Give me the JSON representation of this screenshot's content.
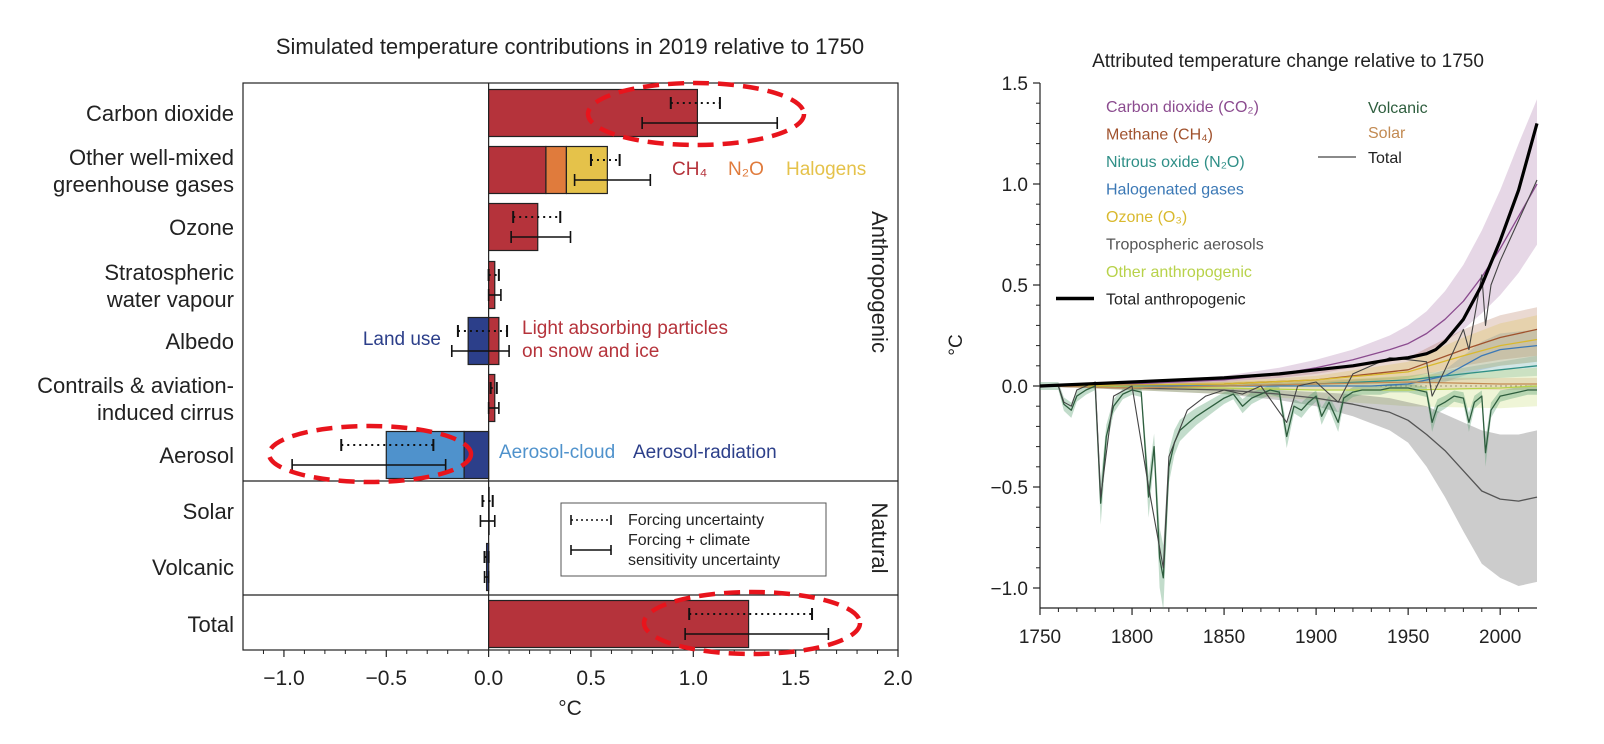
{
  "chart_data": [
    {
      "type": "bar",
      "orientation": "horizontal",
      "title": "Simulated temperature contributions in 2019 relative to 1750",
      "xlabel": "°C",
      "xlim": [
        -1.2,
        2.0
      ],
      "xticks": [
        "−1.0",
        "−0.5",
        "0.0",
        "0.5",
        "1.0",
        "1.5",
        "2.0"
      ],
      "xtick_values": [
        -1.0,
        -0.5,
        0.0,
        0.5,
        1.0,
        1.5,
        2.0
      ],
      "group_labels": [
        "Anthropogenic",
        "Natural"
      ],
      "categories": [
        {
          "label": [
            "Carbon dioxide"
          ],
          "segments": [
            {
              "from": 0,
              "to": 1.02,
              "color": "#b5333b"
            }
          ],
          "forcing_unc": [
            0.89,
            1.13
          ],
          "total_unc": [
            0.75,
            1.41
          ]
        },
        {
          "label": [
            "Other well-mixed",
            "greenhouse gases"
          ],
          "segments": [
            {
              "from": 0,
              "to": 0.28,
              "color": "#b5333b"
            },
            {
              "from": 0.28,
              "to": 0.38,
              "color": "#e07b3c"
            },
            {
              "from": 0.38,
              "to": 0.58,
              "color": "#e5c24a"
            }
          ],
          "forcing_unc": [
            0.5,
            0.64
          ],
          "total_unc": [
            0.42,
            0.79
          ]
        },
        {
          "label": [
            "Ozone"
          ],
          "segments": [
            {
              "from": 0,
              "to": 0.24,
              "color": "#b5333b"
            }
          ],
          "forcing_unc": [
            0.12,
            0.35
          ],
          "total_unc": [
            0.11,
            0.4
          ]
        },
        {
          "label": [
            "Stratospheric",
            "water vapour"
          ],
          "segments": [
            {
              "from": 0,
              "to": 0.03,
              "color": "#b5333b"
            }
          ],
          "forcing_unc": [
            0.0,
            0.05
          ],
          "total_unc": [
            0.0,
            0.06
          ]
        },
        {
          "label": [
            "Albedo"
          ],
          "segments": [
            {
              "from": 0,
              "to": 0.05,
              "color": "#b5333b"
            },
            {
              "from": 0,
              "to": -0.1,
              "color": "#2c3f8a"
            }
          ],
          "forcing_unc": [
            -0.15,
            0.09
          ],
          "total_unc": [
            -0.18,
            0.1
          ]
        },
        {
          "label": [
            "Contrails & aviation-",
            "induced cirrus"
          ],
          "segments": [
            {
              "from": 0,
              "to": 0.03,
              "color": "#b5333b"
            }
          ],
          "forcing_unc": [
            0.01,
            0.04
          ],
          "total_unc": [
            0.0,
            0.05
          ]
        },
        {
          "label": [
            "Aerosol"
          ],
          "segments": [
            {
              "from": 0,
              "to": -0.12,
              "color": "#2c3f8a"
            },
            {
              "from": -0.12,
              "to": -0.5,
              "color": "#4f92cc"
            }
          ],
          "forcing_unc": [
            -0.72,
            -0.27
          ],
          "total_unc": [
            -0.96,
            -0.21
          ]
        },
        {
          "label": [
            "Solar"
          ],
          "segments": [
            {
              "from": 0,
              "to": 0.0,
              "color": "#b5333b"
            }
          ],
          "forcing_unc": [
            -0.03,
            0.02
          ],
          "total_unc": [
            -0.04,
            0.03
          ]
        },
        {
          "label": [
            "Volcanic"
          ],
          "segments": [
            {
              "from": 0,
              "to": -0.01,
              "color": "#2c3f8a"
            }
          ],
          "forcing_unc": [
            -0.02,
            0.0
          ],
          "total_unc": [
            -0.02,
            0.0
          ]
        },
        {
          "label": [
            "Total"
          ],
          "segments": [
            {
              "from": 0,
              "to": 1.27,
              "color": "#b5333b"
            }
          ],
          "forcing_unc": [
            0.98,
            1.58
          ],
          "total_unc": [
            0.96,
            1.66
          ]
        }
      ],
      "annotations": {
        "ch4": "CH₄",
        "n2o": "N₂O",
        "halogens": "Halogens",
        "land_use": "Land use",
        "light_absorbing_1": "Light absorbing particles",
        "light_absorbing_2": "on snow and ice",
        "aerosol_cloud": "Aerosol-cloud",
        "aerosol_radiation": "Aerosol-radiation"
      },
      "legend": {
        "placement": "lower-right",
        "forcing": "Forcing uncertainty",
        "total_1": "Forcing + climate",
        "total_2": "sensitivity uncertainty"
      },
      "highlighted_rows": [
        "Carbon dioxide",
        "Aerosol",
        "Total"
      ],
      "highlight_color": "#e8141c",
      "colors": {
        "co2_red": "#b5333b",
        "ch4_orange": "#e07b3c",
        "halogens_yellow": "#e5c24a",
        "aerosol_cloud": "#4f92cc",
        "aerosol_radiation": "#2c3f8a"
      }
    },
    {
      "type": "line",
      "title": "Attributed temperature change relative to 1750",
      "ylabel": "°C",
      "xlim": [
        1750,
        2020
      ],
      "ylim": [
        -1.1,
        1.55
      ],
      "xticks": [
        "1750",
        "1800",
        "1850",
        "1900",
        "1950",
        "2000"
      ],
      "xtick_values": [
        1750,
        1800,
        1850,
        1900,
        1950,
        2000
      ],
      "yticks": [
        "−1.0",
        "−0.5",
        "0.0",
        "0.5",
        "1.0",
        "1.5"
      ],
      "ytick_values": [
        -1.0,
        -0.5,
        0.0,
        0.5,
        1.0,
        1.5
      ],
      "legend_placement": "top-left",
      "legend": [
        {
          "label": "Carbon dioxide (CO₂)",
          "color": "#8b4b8f"
        },
        {
          "label": "Methane (CH₄)",
          "color": "#a0522d"
        },
        {
          "label": "Nitrous oxide (N₂O)",
          "color": "#2f8f87"
        },
        {
          "label": "Halogenated gases",
          "color": "#3b78b5"
        },
        {
          "label": "Ozone (O₃)",
          "color": "#d9b92e"
        },
        {
          "label": "Tropospheric aerosols",
          "color": "#555555"
        },
        {
          "label": "Other anthropogenic",
          "color": "#b8d24a"
        },
        {
          "label": "Total anthropogenic",
          "color": "#000000"
        },
        {
          "label": "Volcanic",
          "color": "#2e5e3e"
        },
        {
          "label": "Solar",
          "color": "#c28a52"
        },
        {
          "label": "Total",
          "color": "#444444"
        }
      ],
      "series": [
        {
          "name": "Carbon dioxide (CO₂)",
          "color": "#8b4b8f",
          "x": [
            1750,
            1800,
            1850,
            1880,
            1900,
            1920,
            1940,
            1950,
            1960,
            1970,
            1980,
            1990,
            2000,
            2010,
            2020
          ],
          "y": [
            0,
            0.01,
            0.03,
            0.06,
            0.09,
            0.13,
            0.18,
            0.21,
            0.26,
            0.33,
            0.42,
            0.54,
            0.68,
            0.84,
            1.0
          ],
          "band_lo": [
            0,
            0.0,
            0.02,
            0.04,
            0.06,
            0.09,
            0.12,
            0.14,
            0.17,
            0.22,
            0.28,
            0.36,
            0.45,
            0.56,
            0.7
          ],
          "band_hi": [
            0,
            0.02,
            0.05,
            0.09,
            0.13,
            0.18,
            0.25,
            0.3,
            0.37,
            0.47,
            0.6,
            0.77,
            0.97,
            1.2,
            1.42
          ]
        },
        {
          "name": "Methane (CH₄)",
          "color": "#a0522d",
          "x": [
            1750,
            1850,
            1900,
            1950,
            1980,
            2000,
            2020
          ],
          "y": [
            0,
            0.01,
            0.03,
            0.08,
            0.18,
            0.24,
            0.28
          ],
          "band_lo": [
            0,
            0.0,
            0.01,
            0.04,
            0.1,
            0.13,
            0.15
          ],
          "band_hi": [
            0,
            0.03,
            0.07,
            0.14,
            0.28,
            0.35,
            0.39
          ]
        },
        {
          "name": "Nitrous oxide (N₂O)",
          "color": "#2f8f87",
          "x": [
            1750,
            1850,
            1900,
            1950,
            1980,
            2000,
            2020
          ],
          "y": [
            0,
            0.0,
            0.01,
            0.03,
            0.06,
            0.08,
            0.1
          ],
          "band_lo": [
            0,
            0.0,
            0.0,
            0.01,
            0.03,
            0.04,
            0.05
          ],
          "band_hi": [
            0,
            0.01,
            0.02,
            0.05,
            0.09,
            0.12,
            0.15
          ]
        },
        {
          "name": "Halogenated gases",
          "color": "#3b78b5",
          "x": [
            1750,
            1930,
            1950,
            1970,
            1990,
            2000,
            2020
          ],
          "y": [
            0,
            0.0,
            0.01,
            0.05,
            0.15,
            0.18,
            0.2
          ],
          "band_lo": [
            0,
            0.0,
            0.0,
            0.02,
            0.08,
            0.1,
            0.12
          ],
          "band_hi": [
            0,
            0.0,
            0.02,
            0.08,
            0.22,
            0.26,
            0.28
          ]
        },
        {
          "name": "Ozone (O₃)",
          "color": "#d9b92e",
          "x": [
            1750,
            1850,
            1900,
            1950,
            1980,
            2000,
            2020
          ],
          "y": [
            0,
            0.01,
            0.03,
            0.07,
            0.15,
            0.2,
            0.23
          ],
          "band_lo": [
            0,
            0.0,
            0.01,
            0.03,
            0.07,
            0.1,
            0.12
          ],
          "band_hi": [
            0,
            0.02,
            0.05,
            0.12,
            0.24,
            0.31,
            0.35
          ]
        },
        {
          "name": "Other anthropogenic",
          "color": "#b8d24a",
          "x": [
            1750,
            1850,
            1900,
            1950,
            2000,
            2020
          ],
          "y": [
            0,
            -0.01,
            -0.02,
            -0.02,
            -0.01,
            0.0
          ],
          "band_lo": [
            0,
            -0.04,
            -0.07,
            -0.1,
            -0.11,
            -0.1
          ],
          "band_hi": [
            0,
            0.02,
            0.03,
            0.05,
            0.08,
            0.09
          ]
        },
        {
          "name": "Tropospheric aerosols",
          "color": "#555555",
          "x": [
            1750,
            1850,
            1880,
            1900,
            1920,
            1940,
            1950,
            1960,
            1970,
            1980,
            1990,
            2000,
            2010,
            2020
          ],
          "y": [
            0,
            -0.02,
            -0.04,
            -0.06,
            -0.09,
            -0.13,
            -0.17,
            -0.24,
            -0.32,
            -0.42,
            -0.52,
            -0.56,
            -0.57,
            -0.55
          ],
          "band_lo": [
            0,
            -0.04,
            -0.07,
            -0.1,
            -0.15,
            -0.22,
            -0.28,
            -0.4,
            -0.55,
            -0.72,
            -0.88,
            -0.95,
            -0.99,
            -0.97
          ],
          "band_hi": [
            0,
            -0.01,
            -0.02,
            -0.03,
            -0.04,
            -0.06,
            -0.08,
            -0.1,
            -0.14,
            -0.18,
            -0.22,
            -0.24,
            -0.24,
            -0.22
          ]
        },
        {
          "name": "Solar",
          "color": "#c28a52",
          "x": [
            1750,
            1800,
            1850,
            1900,
            1950,
            2000,
            2020
          ],
          "y": [
            0,
            -0.01,
            0.0,
            0.01,
            0.02,
            0.01,
            0.01
          ],
          "band_lo": [
            0,
            -0.02,
            -0.02,
            -0.02,
            -0.01,
            -0.02,
            -0.02
          ],
          "band_hi": [
            0,
            0.0,
            0.02,
            0.03,
            0.04,
            0.04,
            0.04
          ]
        },
        {
          "name": "Volcanic",
          "color": "#2e5e3e",
          "x": [
            1750,
            1760,
            1763,
            1767,
            1770,
            1775,
            1780,
            1783,
            1786,
            1790,
            1795,
            1800,
            1805,
            1809,
            1812,
            1815,
            1817,
            1820,
            1823,
            1826,
            1831,
            1835,
            1840,
            1845,
            1850,
            1855,
            1860,
            1865,
            1870,
            1875,
            1880,
            1884,
            1888,
            1892,
            1896,
            1900,
            1903,
            1907,
            1912,
            1915,
            1920,
            1925,
            1930,
            1935,
            1940,
            1945,
            1950,
            1955,
            1960,
            1963,
            1966,
            1970,
            1975,
            1980,
            1983,
            1986,
            1990,
            1992,
            1995,
            2000,
            2005,
            2010,
            2015,
            2020
          ],
          "y": [
            0,
            0.0,
            -0.09,
            -0.12,
            -0.05,
            -0.02,
            0.0,
            -0.58,
            -0.25,
            -0.1,
            -0.04,
            -0.02,
            -0.03,
            -0.55,
            -0.3,
            -0.85,
            -0.95,
            -0.4,
            -0.28,
            -0.22,
            -0.18,
            -0.15,
            -0.12,
            -0.09,
            -0.06,
            -0.04,
            -0.1,
            -0.06,
            -0.04,
            -0.02,
            -0.03,
            -0.25,
            -0.1,
            -0.12,
            -0.08,
            -0.05,
            -0.15,
            -0.08,
            -0.18,
            -0.06,
            -0.03,
            -0.02,
            -0.02,
            -0.02,
            -0.01,
            -0.01,
            -0.01,
            -0.02,
            -0.03,
            -0.18,
            -0.1,
            -0.08,
            -0.05,
            -0.06,
            -0.18,
            -0.08,
            -0.05,
            -0.33,
            -0.12,
            -0.05,
            -0.04,
            -0.03,
            -0.02,
            -0.02
          ]
        },
        {
          "name": "Total",
          "color": "#444444",
          "x": [
            1750,
            1760,
            1763,
            1767,
            1770,
            1780,
            1783,
            1790,
            1800,
            1809,
            1815,
            1817,
            1820,
            1830,
            1840,
            1850,
            1860,
            1870,
            1884,
            1890,
            1900,
            1912,
            1920,
            1930,
            1940,
            1950,
            1960,
            1963,
            1970,
            1980,
            1983,
            1990,
            1992,
            1995,
            2000,
            2010,
            2020
          ],
          "y": [
            0,
            0.0,
            -0.08,
            -0.1,
            -0.02,
            0.02,
            -0.55,
            -0.05,
            0.0,
            -0.5,
            -0.8,
            -0.9,
            -0.35,
            -0.12,
            -0.05,
            -0.02,
            -0.04,
            0.0,
            -0.18,
            0.0,
            0.02,
            -0.08,
            0.06,
            0.1,
            0.14,
            0.13,
            0.12,
            -0.05,
            0.08,
            0.28,
            0.18,
            0.55,
            0.3,
            0.5,
            0.62,
            0.82,
            1.02
          ]
        },
        {
          "name": "Total anthropogenic",
          "color": "#000000",
          "x": [
            1750,
            1800,
            1850,
            1880,
            1900,
            1920,
            1940,
            1950,
            1960,
            1965,
            1970,
            1980,
            1990,
            2000,
            2010,
            2020
          ],
          "y": [
            0,
            0.02,
            0.04,
            0.06,
            0.08,
            0.1,
            0.13,
            0.14,
            0.16,
            0.18,
            0.22,
            0.33,
            0.5,
            0.72,
            0.97,
            1.3
          ]
        }
      ]
    }
  ]
}
